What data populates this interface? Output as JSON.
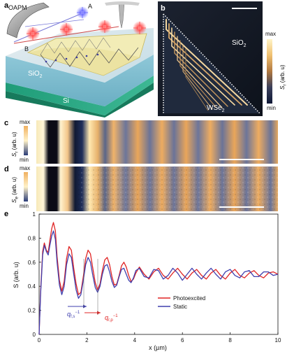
{
  "panels": {
    "a": {
      "label": "a",
      "labels": {
        "oapm": "OAPM",
        "a": "A",
        "b": "B",
        "sio2": "SiO",
        "sio2_sub": "2",
        "si": "Si"
      }
    },
    "b": {
      "label": "b",
      "labels": {
        "sio2": "SiO",
        "sio2_sub": "2",
        "wse2": "WSe",
        "wse2_sub": "2"
      },
      "colorbar": {
        "max": "max",
        "min": "min",
        "title": "S",
        "title_sub": "r",
        "title_unit": "(arb. u)"
      }
    },
    "c": {
      "label": "c",
      "colorbar": {
        "max": "max",
        "min": "min",
        "title": "S",
        "title_sub": "r",
        "title_unit": "(arb. u)"
      }
    },
    "d": {
      "label": "d",
      "colorbar": {
        "max": "max",
        "min": "min",
        "title": "S",
        "title_sub": "e",
        "title_unit": "(arb. u)"
      }
    },
    "e": {
      "label": "e"
    }
  },
  "chart_data": {
    "type": "line",
    "xlabel": "x (µm)",
    "ylabel": "S (arb. u)",
    "xlim": [
      0,
      10
    ],
    "ylim": [
      0,
      1
    ],
    "xticks": [
      "0",
      "2",
      "4",
      "6",
      "8",
      "10"
    ],
    "yticks": [
      "0",
      "0.2",
      "0.4",
      "0.6",
      "0.8",
      "1"
    ],
    "legend_position": "right-middle",
    "series": [
      {
        "name": "Photoexcited",
        "color": "#e02424",
        "x": [
          0.0,
          0.06,
          0.15,
          0.22,
          0.3,
          0.38,
          0.45,
          0.53,
          0.6,
          0.68,
          0.75,
          0.85,
          0.95,
          1.05,
          1.15,
          1.25,
          1.35,
          1.45,
          1.55,
          1.65,
          1.75,
          1.85,
          1.95,
          2.05,
          2.15,
          2.25,
          2.35,
          2.45,
          2.55,
          2.65,
          2.75,
          2.85,
          2.95,
          3.05,
          3.15,
          3.25,
          3.35,
          3.45,
          3.55,
          3.65,
          3.75,
          3.85,
          3.95,
          4.05,
          4.2,
          4.4,
          4.6,
          4.8,
          5.0,
          5.2,
          5.4,
          5.6,
          5.8,
          6.0,
          6.2,
          6.4,
          6.6,
          6.8,
          7.0,
          7.2,
          7.4,
          7.6,
          7.8,
          8.0,
          8.2,
          8.4,
          8.6,
          8.8,
          9.0,
          9.2,
          9.4,
          9.6,
          9.8,
          10.0
        ],
        "y": [
          0.0,
          0.35,
          0.69,
          0.76,
          0.7,
          0.68,
          0.78,
          0.88,
          0.93,
          0.86,
          0.65,
          0.45,
          0.36,
          0.44,
          0.63,
          0.73,
          0.7,
          0.55,
          0.42,
          0.33,
          0.35,
          0.48,
          0.63,
          0.7,
          0.67,
          0.55,
          0.43,
          0.37,
          0.42,
          0.53,
          0.62,
          0.64,
          0.58,
          0.48,
          0.41,
          0.42,
          0.49,
          0.57,
          0.6,
          0.56,
          0.49,
          0.44,
          0.46,
          0.51,
          0.56,
          0.5,
          0.46,
          0.52,
          0.55,
          0.49,
          0.46,
          0.51,
          0.55,
          0.5,
          0.46,
          0.51,
          0.54,
          0.49,
          0.46,
          0.51,
          0.54,
          0.49,
          0.46,
          0.51,
          0.54,
          0.49,
          0.47,
          0.51,
          0.53,
          0.49,
          0.47,
          0.51,
          0.52,
          0.5
        ]
      },
      {
        "name": "Static",
        "color": "#3f3fae",
        "x": [
          0.0,
          0.06,
          0.15,
          0.22,
          0.3,
          0.38,
          0.45,
          0.53,
          0.6,
          0.68,
          0.75,
          0.85,
          0.95,
          1.05,
          1.15,
          1.25,
          1.35,
          1.45,
          1.55,
          1.65,
          1.75,
          1.85,
          1.95,
          2.05,
          2.15,
          2.25,
          2.35,
          2.45,
          2.55,
          2.65,
          2.75,
          2.85,
          2.95,
          3.05,
          3.15,
          3.25,
          3.35,
          3.45,
          3.55,
          3.65,
          3.75,
          3.85,
          3.95,
          4.05,
          4.2,
          4.4,
          4.6,
          4.8,
          5.0,
          5.2,
          5.4,
          5.6,
          5.8,
          6.0,
          6.2,
          6.4,
          6.6,
          6.8,
          7.0,
          7.2,
          7.4,
          7.6,
          7.8,
          8.0,
          8.2,
          8.4,
          8.6,
          8.8,
          9.0,
          9.2,
          9.4,
          9.6,
          9.8,
          10.0
        ],
        "y": [
          0.0,
          0.33,
          0.66,
          0.74,
          0.69,
          0.66,
          0.74,
          0.82,
          0.86,
          0.79,
          0.6,
          0.41,
          0.33,
          0.4,
          0.58,
          0.67,
          0.64,
          0.5,
          0.37,
          0.3,
          0.33,
          0.45,
          0.58,
          0.64,
          0.6,
          0.49,
          0.39,
          0.35,
          0.4,
          0.5,
          0.57,
          0.58,
          0.52,
          0.44,
          0.39,
          0.41,
          0.48,
          0.54,
          0.55,
          0.5,
          0.45,
          0.43,
          0.47,
          0.53,
          0.55,
          0.48,
          0.47,
          0.54,
          0.53,
          0.46,
          0.49,
          0.55,
          0.51,
          0.45,
          0.5,
          0.55,
          0.5,
          0.46,
          0.51,
          0.55,
          0.5,
          0.46,
          0.52,
          0.54,
          0.49,
          0.47,
          0.52,
          0.53,
          0.48,
          0.48,
          0.52,
          0.52,
          0.49,
          0.5
        ]
      }
    ],
    "annotations": [
      {
        "text": "q",
        "sub": "f,s",
        "sup": "−1",
        "color": "#3f3fae"
      },
      {
        "text": "q",
        "sub": "r,p",
        "sup": "−1",
        "color": "#e02424"
      }
    ]
  }
}
